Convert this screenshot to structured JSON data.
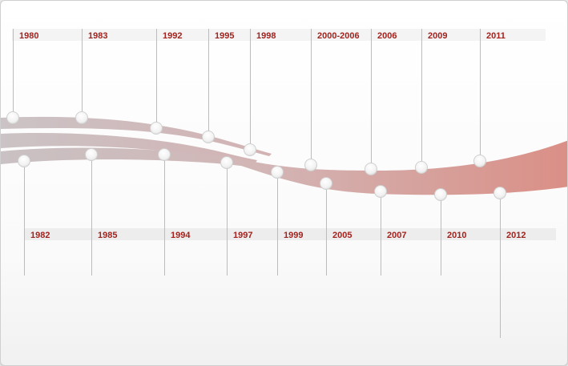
{
  "timeline": {
    "top_years": [
      "1980",
      "1983",
      "1992",
      "1995",
      "1998",
      "2000-2006",
      "2006",
      "2009",
      "2011"
    ],
    "bottom_years": [
      "1982",
      "1985",
      "1994",
      "1997",
      "1999",
      "2005",
      "2007",
      "2010",
      "2012"
    ]
  },
  "colors": {
    "label_text": "#a3221d",
    "ribbon_start": "#c9c1c3",
    "ribbon_end": "#da8f86",
    "label_band": "#efefef",
    "connector_line": "#bcbcbc"
  }
}
